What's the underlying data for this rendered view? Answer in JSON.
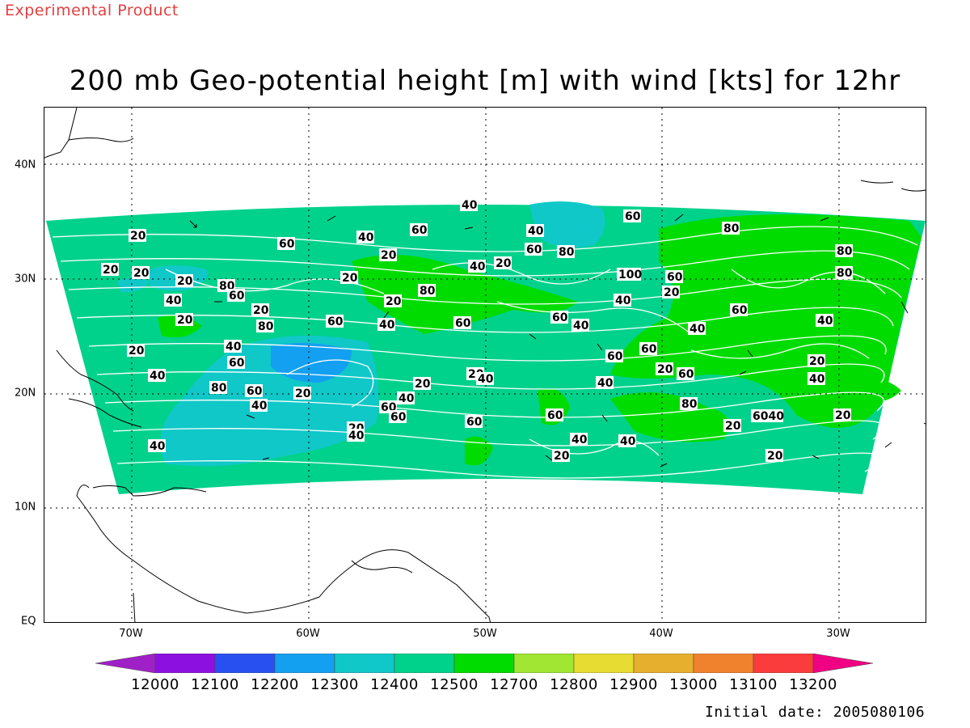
{
  "header": {
    "experimental_label": "Experimental Product",
    "title": "200 mb Geo-potential height [m] with wind [kts] for 12hr"
  },
  "map": {
    "lat_labels": [
      "40N",
      "30N",
      "20N",
      "10N",
      "EQ"
    ],
    "lon_labels": [
      "70W",
      "60W",
      "50W",
      "40W",
      "30W"
    ],
    "contour_color": "#ffffff",
    "coast_color": "#000000",
    "wind_speed_labels": [
      "20",
      "40",
      "60",
      "80",
      "100"
    ]
  },
  "colorbar": {
    "levels": [
      "12000",
      "12100",
      "12200",
      "12300",
      "12400",
      "12500",
      "12700",
      "12800",
      "12900",
      "13000",
      "13100",
      "13200"
    ],
    "colors": [
      "#a020c8",
      "#8c10e0",
      "#2850f0",
      "#14a0f0",
      "#10c8c8",
      "#00d28c",
      "#00dc00",
      "#a0e632",
      "#e6dc32",
      "#e6af2d",
      "#f0822d",
      "#fa3c3c",
      "#f00082"
    ]
  },
  "footer": {
    "initial_date": "Initial date: 2005080106"
  }
}
